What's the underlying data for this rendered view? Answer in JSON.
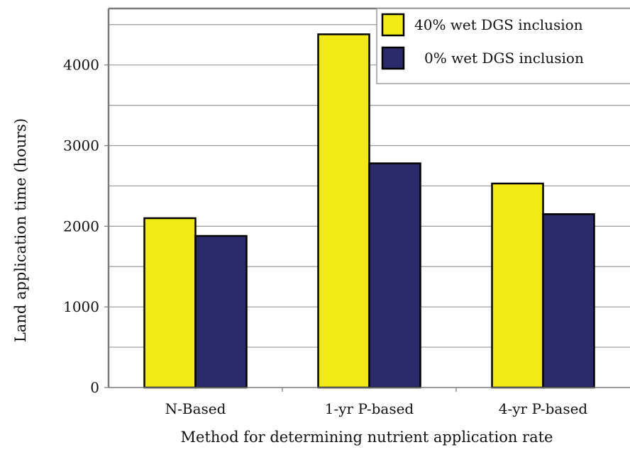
{
  "chart_data": {
    "type": "bar",
    "title": "",
    "xlabel": "Method for determining nutrient application rate",
    "ylabel": "Land application time (hours)",
    "categories": [
      "N-Based",
      "1-yr P-based",
      "4-yr P-based"
    ],
    "series": [
      {
        "name": "40% wet DGS inclusion",
        "color": "#f2ea14",
        "values": [
          2100,
          4380,
          2530
        ]
      },
      {
        "name": "0% wet DGS inclusion",
        "color": "#2b2a6b",
        "values": [
          1880,
          2780,
          2150
        ]
      }
    ],
    "ylim": [
      0,
      4700
    ],
    "yticks": [
      0,
      1000,
      2000,
      3000,
      4000
    ],
    "grid": true,
    "legend": "top-right"
  }
}
